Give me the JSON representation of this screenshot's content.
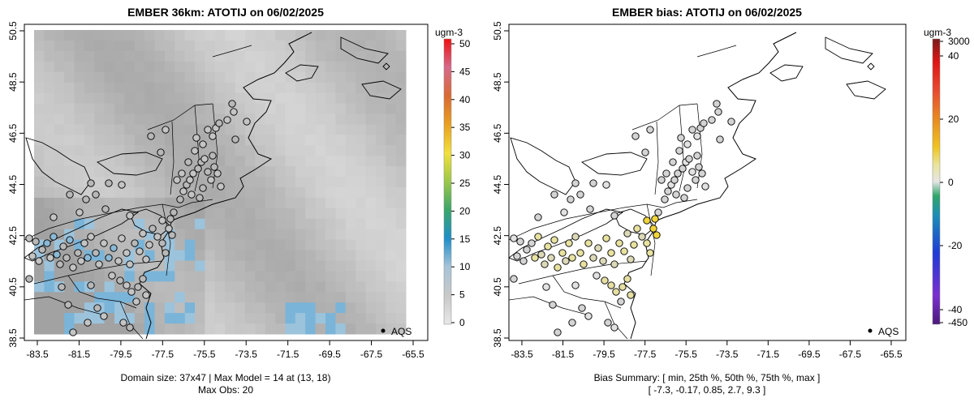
{
  "chart_data": [
    {
      "type": "map",
      "title": "EMBER 36km: ATOTIJ on 06/02/2025",
      "x_ticks": [
        "-83.5",
        "-81.5",
        "-79.5",
        "-77.5",
        "-75.5",
        "-73.5",
        "-71.5",
        "-69.5",
        "-67.5",
        "-65.5"
      ],
      "y_ticks": [
        "38.5",
        "40.5",
        "42.5",
        "44.5",
        "46.5",
        "48.5",
        "50.5"
      ],
      "legend_label": "AQS",
      "colorbar": {
        "unit": "ugm-3",
        "tick_labels": [
          "0",
          "5",
          "10",
          "15",
          "20",
          "25",
          "30",
          "35",
          "40",
          "45",
          "50"
        ],
        "range": [
          0,
          50
        ]
      },
      "footer": [
        "Domain size: 37x47 | Max Model = 14 at (13, 18)",
        "Max Obs: 20"
      ]
    },
    {
      "type": "map",
      "title": "EMBER bias: ATOTIJ on 06/02/2025",
      "x_ticks": [
        "-83.5",
        "-81.5",
        "-79.5",
        "-77.5",
        "-75.5",
        "-73.5",
        "-71.5",
        "-69.5",
        "-67.5",
        "-65.5"
      ],
      "y_ticks": [
        "38.5",
        "40.5",
        "42.5",
        "44.5",
        "46.5",
        "48.5",
        "50.5"
      ],
      "legend_label": "AQS",
      "colorbar": {
        "unit": "ugm-3",
        "tick_labels": [
          "-450",
          "-40",
          "-20",
          "0",
          "20",
          "3000"
        ],
        "mid_ticks": [
          "-450",
          "-40",
          "-20",
          "0",
          "20",
          "40",
          "3000"
        ],
        "labels_shown": [
          "3000",
          "40",
          "20",
          "0",
          "-20",
          "-40",
          "-450"
        ]
      },
      "footer": [
        "Bias Summary: [ min, 25th %, 50th %, 75th %, max ]",
        "[ -7.3,   -0.17,   0.85,   2.7,   9.3 ]"
      ]
    }
  ]
}
